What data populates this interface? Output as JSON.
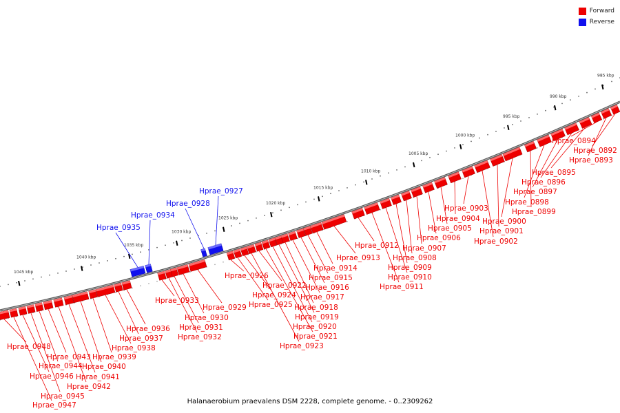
{
  "legend": {
    "forward_label": "Forward",
    "reverse_label": "Reverse",
    "forward_color": "#ee0000",
    "reverse_color": "#1010ee"
  },
  "caption": "Halanaerobium praevalens DSM 2228, complete genome. - 0..2309262",
  "ruler": {
    "labels": [
      "985 kbp",
      "990 kbp",
      "995 kbp",
      "1000 kbp",
      "1005 kbp",
      "1010 kbp",
      "1015 kbp",
      "1020 kbp",
      "1025 kbp",
      "1030 kbp",
      "1035 kbp",
      "1040 kbp",
      "1045 kbp"
    ]
  },
  "genes": [
    {
      "name": "Hprae_0892",
      "strand": "forward"
    },
    {
      "name": "Hprae_0893",
      "strand": "forward"
    },
    {
      "name": "Hprae_0894",
      "strand": "forward"
    },
    {
      "name": "Hprae_0895",
      "strand": "forward"
    },
    {
      "name": "Hprae_0896",
      "strand": "forward"
    },
    {
      "name": "Hprae_0897",
      "strand": "forward"
    },
    {
      "name": "Hprae_0898",
      "strand": "forward"
    },
    {
      "name": "Hprae_0899",
      "strand": "forward"
    },
    {
      "name": "Hprae_0900",
      "strand": "forward"
    },
    {
      "name": "Hprae_0901",
      "strand": "forward"
    },
    {
      "name": "Hprae_0902",
      "strand": "forward"
    },
    {
      "name": "Hprae_0903",
      "strand": "forward"
    },
    {
      "name": "Hprae_0904",
      "strand": "forward"
    },
    {
      "name": "Hprae_0905",
      "strand": "forward"
    },
    {
      "name": "Hprae_0906",
      "strand": "forward"
    },
    {
      "name": "Hprae_0907",
      "strand": "forward"
    },
    {
      "name": "Hprae_0908",
      "strand": "forward"
    },
    {
      "name": "Hprae_0909",
      "strand": "forward"
    },
    {
      "name": "Hprae_0910",
      "strand": "forward"
    },
    {
      "name": "Hprae_0911",
      "strand": "forward"
    },
    {
      "name": "Hprae_0912",
      "strand": "forward"
    },
    {
      "name": "Hprae_0913",
      "strand": "forward"
    },
    {
      "name": "Hprae_0914",
      "strand": "forward"
    },
    {
      "name": "Hprae_0915",
      "strand": "forward"
    },
    {
      "name": "Hprae_0916",
      "strand": "forward"
    },
    {
      "name": "Hprae_0917",
      "strand": "forward"
    },
    {
      "name": "Hprae_0918",
      "strand": "forward"
    },
    {
      "name": "Hprae_0919",
      "strand": "forward"
    },
    {
      "name": "Hprae_0920",
      "strand": "forward"
    },
    {
      "name": "Hprae_0921",
      "strand": "forward"
    },
    {
      "name": "Hprae_0922",
      "strand": "forward"
    },
    {
      "name": "Hprae_0923",
      "strand": "forward"
    },
    {
      "name": "Hprae_0924",
      "strand": "forward"
    },
    {
      "name": "Hprae_0925",
      "strand": "forward"
    },
    {
      "name": "Hprae_0926",
      "strand": "forward"
    },
    {
      "name": "Hprae_0927",
      "strand": "reverse"
    },
    {
      "name": "Hprae_0928",
      "strand": "reverse"
    },
    {
      "name": "Hprae_0929",
      "strand": "forward"
    },
    {
      "name": "Hprae_0930",
      "strand": "forward"
    },
    {
      "name": "Hprae_0931",
      "strand": "forward"
    },
    {
      "name": "Hprae_0932",
      "strand": "forward"
    },
    {
      "name": "Hprae_0933",
      "strand": "forward"
    },
    {
      "name": "Hprae_0934",
      "strand": "reverse"
    },
    {
      "name": "Hprae_0935",
      "strand": "reverse"
    },
    {
      "name": "Hprae_0936",
      "strand": "forward"
    },
    {
      "name": "Hprae_0937",
      "strand": "forward"
    },
    {
      "name": "Hprae_0938",
      "strand": "forward"
    },
    {
      "name": "Hprae_0939",
      "strand": "forward"
    },
    {
      "name": "Hprae_0940",
      "strand": "forward"
    },
    {
      "name": "Hprae_0941",
      "strand": "forward"
    },
    {
      "name": "Hprae_0942",
      "strand": "forward"
    },
    {
      "name": "Hprae_0943",
      "strand": "forward"
    },
    {
      "name": "Hprae_0944",
      "strand": "forward"
    },
    {
      "name": "Hprae_0945",
      "strand": "forward"
    },
    {
      "name": "Hprae_0946",
      "strand": "forward"
    },
    {
      "name": "Hprae_0947",
      "strand": "forward"
    },
    {
      "name": "Hprae_0948",
      "strand": "forward"
    }
  ]
}
